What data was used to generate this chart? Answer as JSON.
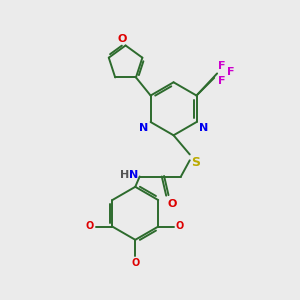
{
  "background_color": "#ebebeb",
  "bond_color": "#2d6b2d",
  "n_color": "#0000ee",
  "o_color": "#dd0000",
  "s_color": "#bbaa00",
  "f_color": "#cc00cc",
  "h_color": "#555555",
  "figsize": [
    3.0,
    3.0
  ],
  "dpi": 100,
  "xlim": [
    0,
    10
  ],
  "ylim": [
    0,
    10
  ]
}
